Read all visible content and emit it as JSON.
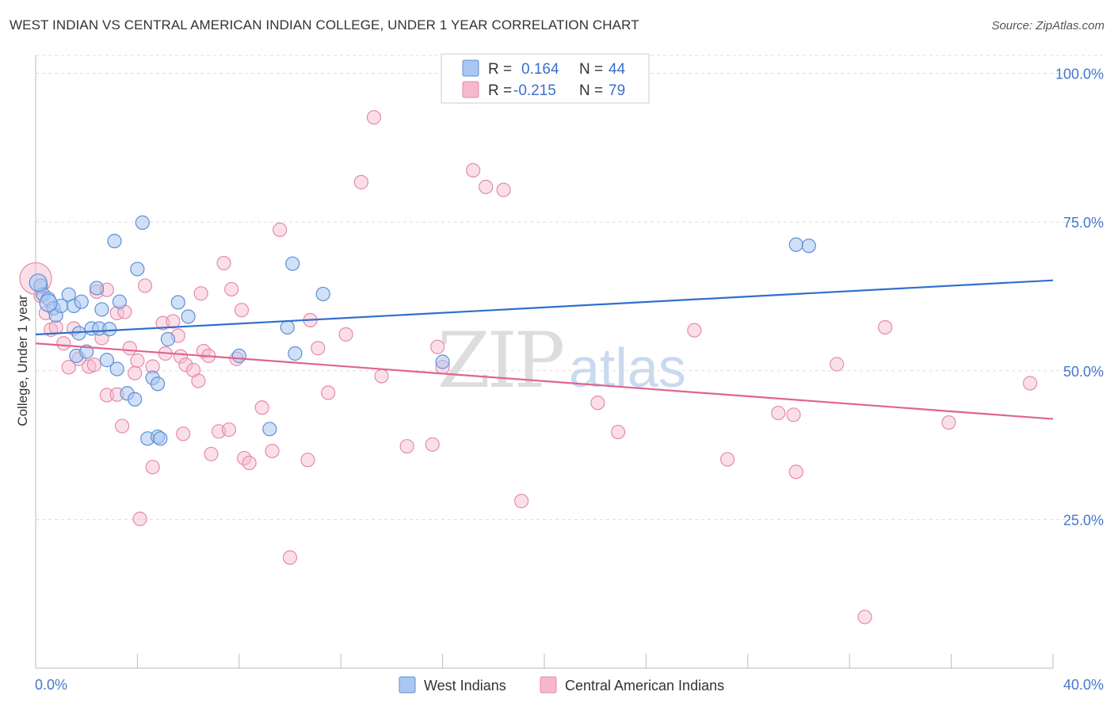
{
  "title": "WEST INDIAN VS CENTRAL AMERICAN INDIAN COLLEGE, UNDER 1 YEAR CORRELATION CHART",
  "source": "Source: ZipAtlas.com",
  "watermark": {
    "zip": "ZIP",
    "atlas": "atlas"
  },
  "colors": {
    "blue_fill": "#a9c7f0",
    "blue_stroke": "#5f8fd6",
    "blue_line": "#2f6fcf",
    "pink_fill": "#f6b8cd",
    "pink_stroke": "#e68aa9",
    "pink_line": "#e0648f",
    "grid": "#dddddd",
    "axis": "#bbbbbb",
    "tick_text": "#4477cc"
  },
  "legend": {
    "row1": {
      "r_label": "R =",
      "r_value": "0.164",
      "n_label": "N =",
      "n_value": "44"
    },
    "row2": {
      "r_label": "R =",
      "r_value": "-0.215",
      "n_label": "N =",
      "n_value": "79"
    }
  },
  "bottom_legend": [
    "West Indians",
    "Central American Indians"
  ],
  "chart_data": {
    "type": "scatter",
    "title": "WEST INDIAN VS CENTRAL AMERICAN INDIAN COLLEGE, UNDER 1 YEAR CORRELATION CHART",
    "xlabel": "",
    "ylabel": "College, Under 1 year",
    "xlim": [
      0,
      40
    ],
    "ylim": [
      0,
      103
    ],
    "x_tick_labels": [
      "0.0%",
      "40.0%"
    ],
    "y_ticks": [
      25,
      50,
      75,
      100
    ],
    "y_tick_labels": [
      "25.0%",
      "50.0%",
      "75.0%",
      "100.0%"
    ],
    "legend_position": "top-center",
    "series": [
      {
        "name": "West Indians",
        "R": 0.164,
        "N": 44,
        "trend": {
          "x": [
            0,
            40
          ],
          "y": [
            56.1,
            65.2
          ]
        },
        "points": [
          [
            0.2,
            64.3
          ],
          [
            0.3,
            62.8
          ],
          [
            0.5,
            62.1
          ],
          [
            0.7,
            60.5
          ],
          [
            0.8,
            59.3
          ],
          [
            1.0,
            60.9
          ],
          [
            1.3,
            62.8
          ],
          [
            1.5,
            60.9
          ],
          [
            1.8,
            61.6
          ],
          [
            1.6,
            52.5
          ],
          [
            1.7,
            56.3
          ],
          [
            2.0,
            53.2
          ],
          [
            2.2,
            57.1
          ],
          [
            2.5,
            57.1
          ],
          [
            2.9,
            57.0
          ],
          [
            2.4,
            63.9
          ],
          [
            2.6,
            60.3
          ],
          [
            3.3,
            61.6
          ],
          [
            2.8,
            51.8
          ],
          [
            3.2,
            50.3
          ],
          [
            3.1,
            71.8
          ],
          [
            3.6,
            46.2
          ],
          [
            3.9,
            45.2
          ],
          [
            4.2,
            74.9
          ],
          [
            4.0,
            67.1
          ],
          [
            4.4,
            38.6
          ],
          [
            4.8,
            38.9
          ],
          [
            4.9,
            38.6
          ],
          [
            4.6,
            48.8
          ],
          [
            4.8,
            47.8
          ],
          [
            5.2,
            55.3
          ],
          [
            5.6,
            61.5
          ],
          [
            6.0,
            59.1
          ],
          [
            8.0,
            52.5
          ],
          [
            9.2,
            40.2
          ],
          [
            9.9,
            57.3
          ],
          [
            10.1,
            68.0
          ],
          [
            10.2,
            52.9
          ],
          [
            11.3,
            62.9
          ],
          [
            16.0,
            51.5
          ],
          [
            29.9,
            71.2
          ],
          [
            30.4,
            71.0
          ],
          [
            0.1,
            64.8
          ],
          [
            0.5,
            61.4
          ]
        ]
      },
      {
        "name": "Central American Indians",
        "R": -0.215,
        "N": 79,
        "trend": {
          "x": [
            0,
            40
          ],
          "y": [
            54.6,
            41.9
          ]
        },
        "points": [
          [
            0.0,
            65.5
          ],
          [
            0.2,
            62.6
          ],
          [
            0.4,
            59.7
          ],
          [
            0.6,
            56.9
          ],
          [
            0.8,
            57.3
          ],
          [
            1.1,
            54.6
          ],
          [
            1.3,
            50.6
          ],
          [
            1.5,
            57.1
          ],
          [
            1.7,
            52.0
          ],
          [
            2.1,
            50.7
          ],
          [
            2.3,
            51.0
          ],
          [
            2.6,
            55.5
          ],
          [
            2.4,
            63.3
          ],
          [
            2.8,
            63.6
          ],
          [
            3.2,
            59.7
          ],
          [
            3.5,
            59.9
          ],
          [
            2.8,
            45.9
          ],
          [
            3.2,
            46.0
          ],
          [
            3.4,
            40.7
          ],
          [
            3.7,
            53.8
          ],
          [
            3.9,
            49.6
          ],
          [
            4.0,
            51.7
          ],
          [
            4.3,
            64.3
          ],
          [
            4.6,
            50.7
          ],
          [
            4.1,
            25.1
          ],
          [
            4.6,
            33.8
          ],
          [
            5.0,
            58.0
          ],
          [
            5.1,
            52.9
          ],
          [
            5.4,
            58.3
          ],
          [
            5.6,
            55.9
          ],
          [
            5.7,
            52.4
          ],
          [
            5.8,
            39.4
          ],
          [
            5.9,
            51.0
          ],
          [
            6.2,
            50.1
          ],
          [
            6.4,
            48.3
          ],
          [
            6.5,
            63.0
          ],
          [
            6.6,
            53.3
          ],
          [
            6.8,
            52.5
          ],
          [
            6.9,
            36.0
          ],
          [
            7.2,
            39.8
          ],
          [
            7.4,
            68.1
          ],
          [
            7.6,
            40.1
          ],
          [
            7.7,
            63.7
          ],
          [
            7.9,
            52.0
          ],
          [
            8.1,
            60.2
          ],
          [
            8.2,
            35.3
          ],
          [
            8.4,
            34.5
          ],
          [
            8.9,
            43.8
          ],
          [
            9.3,
            36.5
          ],
          [
            9.6,
            73.7
          ],
          [
            10.0,
            18.6
          ],
          [
            10.7,
            35.0
          ],
          [
            10.8,
            58.5
          ],
          [
            11.1,
            53.8
          ],
          [
            11.5,
            46.3
          ],
          [
            12.2,
            56.1
          ],
          [
            12.8,
            81.7
          ],
          [
            13.3,
            92.6
          ],
          [
            13.6,
            49.1
          ],
          [
            14.6,
            37.3
          ],
          [
            15.6,
            37.6
          ],
          [
            15.8,
            54.0
          ],
          [
            16.0,
            50.6
          ],
          [
            17.2,
            83.7
          ],
          [
            17.7,
            80.9
          ],
          [
            18.4,
            80.4
          ],
          [
            19.1,
            28.1
          ],
          [
            22.1,
            44.6
          ],
          [
            22.9,
            39.7
          ],
          [
            25.9,
            56.8
          ],
          [
            27.2,
            35.1
          ],
          [
            29.2,
            42.9
          ],
          [
            29.8,
            42.6
          ],
          [
            29.9,
            33.0
          ],
          [
            31.5,
            51.1
          ],
          [
            32.6,
            8.6
          ],
          [
            33.4,
            57.3
          ],
          [
            35.9,
            41.3
          ],
          [
            39.1,
            47.9
          ]
        ]
      }
    ]
  }
}
